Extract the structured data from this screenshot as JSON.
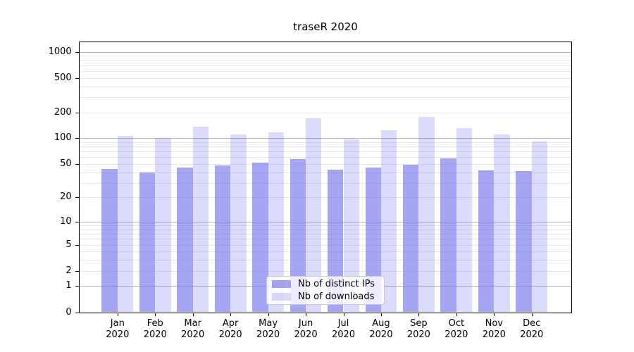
{
  "chart_data": {
    "type": "bar",
    "title": "traseR 2020",
    "categories": [
      "Jan",
      "Feb",
      "Mar",
      "Apr",
      "May",
      "Jun",
      "Jul",
      "Aug",
      "Sep",
      "Oct",
      "Nov",
      "Dec"
    ],
    "year": "2020",
    "series": [
      {
        "name": "Nb of distinct IPs",
        "fill": "rgba(110,110,238,0.62)",
        "values": [
          44,
          40,
          45,
          48,
          52,
          57,
          43,
          45,
          49,
          58,
          42,
          41
        ]
      },
      {
        "name": "Nb of downloads",
        "fill": "rgba(110,110,238,0.25)",
        "values": [
          106,
          100,
          135,
          110,
          118,
          172,
          97,
          123,
          176,
          132,
          111,
          92
        ]
      }
    ],
    "xlabel": "",
    "ylabel": "",
    "y_axis": {
      "scale": "log1p",
      "ticks": [
        0,
        1,
        2,
        5,
        10,
        20,
        50,
        100,
        200,
        500,
        1000
      ],
      "major_gridlines": [
        1,
        10,
        100,
        1000
      ],
      "minor_gridlines": [
        2,
        3,
        4,
        5,
        6,
        7,
        8,
        9,
        20,
        30,
        40,
        50,
        60,
        70,
        80,
        90,
        200,
        300,
        400,
        500,
        600,
        700,
        800,
        900
      ],
      "ylim": [
        0,
        1270
      ],
      "grid": true
    },
    "legend": {
      "position": "lower center",
      "entries": [
        "Nb of distinct IPs",
        "Nb of downloads"
      ]
    }
  },
  "colors": {
    "bar_base": "#6e6eee",
    "bar_distinct_ips": "rgba(110,110,238,0.62)",
    "bar_downloads": "rgba(110,110,238,0.25)",
    "grid_major": "#b3b3b3",
    "grid_minor": "#e7e7e7",
    "axis": "#000000",
    "text": "#000000",
    "legend_border": "#cccccc",
    "legend_background": "rgba(255,255,255,0.8)",
    "background": "#ffffff"
  }
}
